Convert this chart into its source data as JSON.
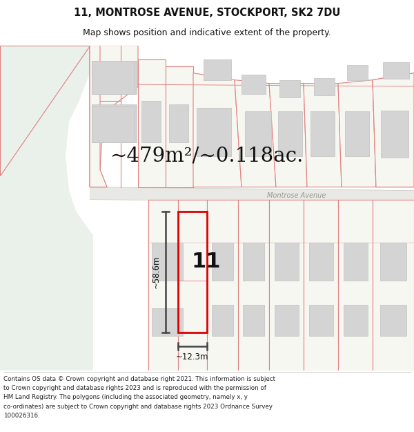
{
  "title_line1": "11, MONTROSE AVENUE, STOCKPORT, SK2 7DU",
  "title_line2": "Map shows position and indicative extent of the property.",
  "area_text": "~479m²/~0.118ac.",
  "street_label": "Montrose Avenue",
  "number_label": "11",
  "dim_width": "~12.3m",
  "dim_height": "~58.6m",
  "footer_lines": [
    "Contains OS data © Crown copyright and database right 2021. This information is subject",
    "to Crown copyright and database rights 2023 and is reproduced with the permission of",
    "HM Land Registry. The polygons (including the associated geometry, namely x, y",
    "co-ordinates) are subject to Crown copyright and database rights 2023 Ordnance Survey",
    "100026316."
  ],
  "map_bg": "#f7f7f2",
  "plot_line_color": "#e08080",
  "highlight_color": "#dd0000",
  "building_fill": "#d4d4d4",
  "building_edge": "#c0c0c0",
  "green_area_color": "#eaf0ea",
  "road_color": "#e8e8e4",
  "footer_bg": "#ffffff",
  "dim_color": "#444444",
  "title_fontsize": 10.5,
  "subtitle_fontsize": 9,
  "area_fontsize": 21,
  "street_label_fontsize": 7,
  "number_fontsize": 22,
  "footer_fontsize": 6.3,
  "dim_fontsize": 8.5
}
